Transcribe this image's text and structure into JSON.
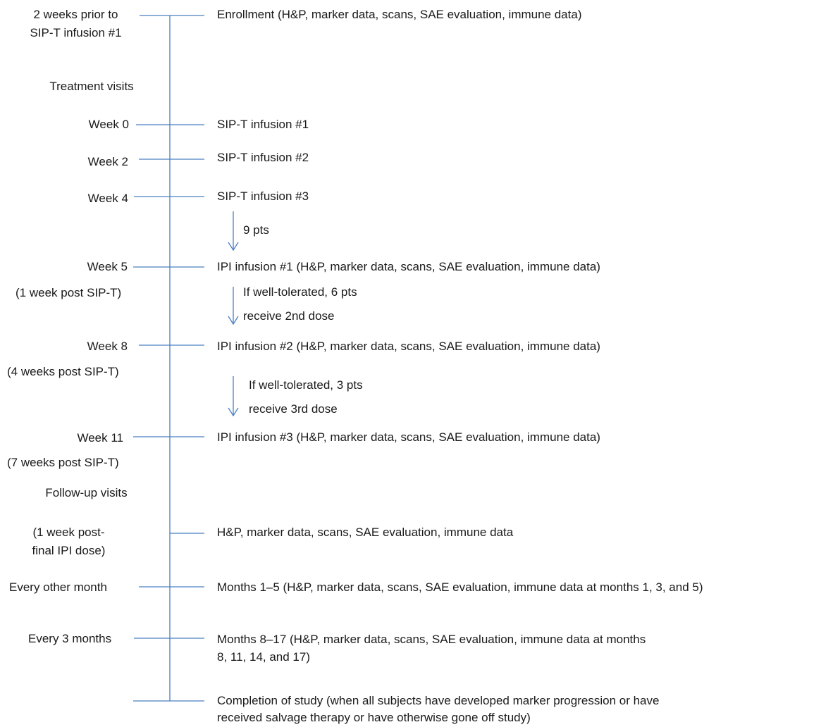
{
  "left": {
    "enroll_l1": "2 weeks prior to",
    "enroll_l2": "SIP-T infusion #1",
    "treatment_header": "Treatment visits",
    "week0": "Week 0",
    "week2": "Week 2",
    "week4": "Week 4",
    "week5": "Week 5",
    "week5_sub": "(1 week post SIP-T)",
    "week8": "Week 8",
    "week8_sub": "(4 weeks post SIP-T)",
    "week11": "Week 11",
    "week11_sub": "(7 weeks post SIP-T)",
    "followup_header": "Follow-up visits",
    "post_l1": "(1 week post-",
    "post_l2": "final IPI dose)",
    "every_other": "Every other month",
    "every3": "Every 3 months"
  },
  "right": {
    "enrollment": "Enrollment (H&P, marker data, scans, SAE evaluation, immune data)",
    "sipt1": "SIP-T infusion #1",
    "sipt2": "SIP-T infusion #2",
    "sipt3": "SIP-T infusion #3",
    "ipi1": "IPI infusion #1 (H&P, marker data, scans, SAE evaluation, immune data)",
    "ipi2": "IPI infusion #2 (H&P, marker data, scans, SAE evaluation, immune data)",
    "ipi3": "IPI infusion #3 (H&P, marker data, scans, SAE evaluation, immune data)",
    "post_final": "H&P, marker data, scans, SAE evaluation, immune data",
    "months1_5": "Months 1–5 (H&P, marker data, scans, SAE evaluation, immune data at months 1, 3, and 5)",
    "months8_17_l1": "Months 8–17 (H&P, marker data, scans, SAE evaluation, immune data at months",
    "months8_17_l2": "8, 11, 14, and 17)",
    "completion_l1": "Completion of study (when all subjects have developed marker progression or have",
    "completion_l2": "received salvage therapy or have otherwise gone off study)"
  },
  "arrows": {
    "a1": "9 pts",
    "a2_l1": "If well-tolerated, 6 pts",
    "a2_l2": "receive 2nd dose",
    "a3_l1": "If well-tolerated, 3 pts",
    "a3_l2": "receive 3rd dose"
  }
}
